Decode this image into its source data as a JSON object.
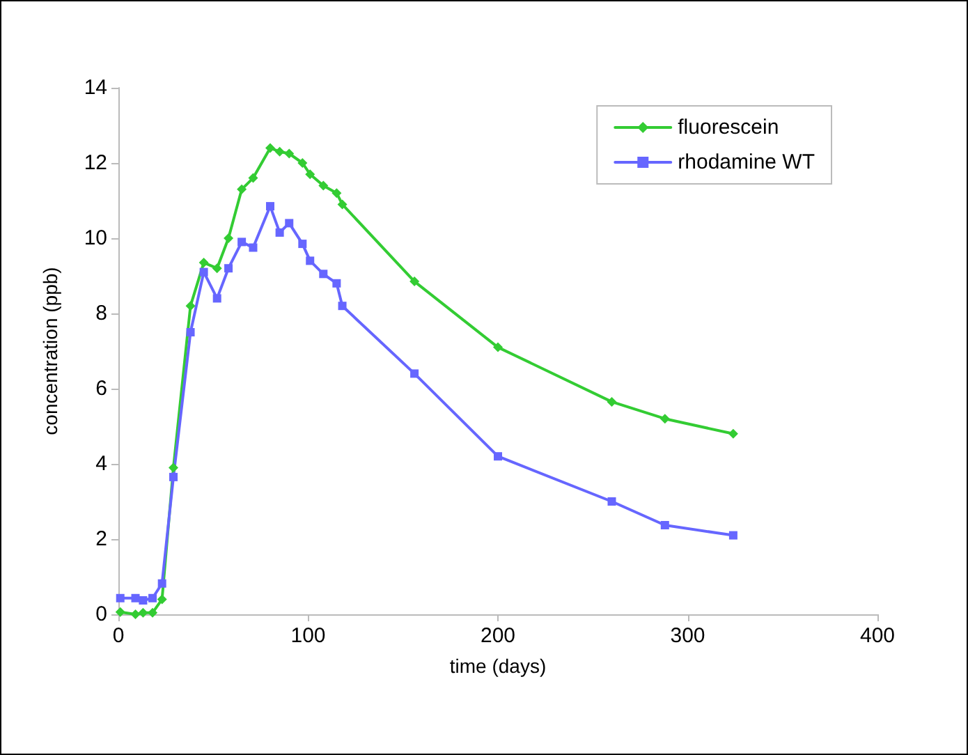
{
  "chart_data": {
    "type": "line",
    "xlabel": "time (days)",
    "ylabel": "concentration (ppb)",
    "x": [
      1,
      9,
      13,
      18,
      23,
      29,
      38,
      45,
      52,
      58,
      65,
      71,
      80,
      85,
      90,
      97,
      101,
      108,
      115,
      118,
      156,
      200,
      260,
      288,
      324
    ],
    "series": [
      {
        "name": "fluorescein",
        "color": "#33cc33",
        "marker": "diamond",
        "values": [
          0.06,
          0,
          0.04,
          0.04,
          0.4,
          3.9,
          8.2,
          9.35,
          9.2,
          10.0,
          11.3,
          11.6,
          12.4,
          12.3,
          12.25,
          12.0,
          11.7,
          11.4,
          11.2,
          10.9,
          8.85,
          7.1,
          5.65,
          5.2,
          4.8
        ]
      },
      {
        "name": "rhodamine WT",
        "color": "#6666ff",
        "marker": "square",
        "values": [
          0.43,
          0.43,
          0.37,
          0.43,
          0.82,
          3.65,
          7.5,
          9.1,
          8.4,
          9.2,
          9.9,
          9.75,
          10.85,
          10.15,
          10.4,
          9.85,
          9.4,
          9.05,
          8.8,
          8.2,
          6.4,
          4.2,
          3.0,
          2.37,
          2.1
        ]
      }
    ],
    "xlim": [
      0,
      400
    ],
    "xticks": [
      0,
      100,
      200,
      300,
      400
    ],
    "ylim": [
      0,
      14
    ],
    "yticks": [
      0,
      2,
      4,
      6,
      8,
      10,
      12,
      14
    ],
    "grid": false,
    "legend": "top right",
    "line_style": "solid"
  }
}
